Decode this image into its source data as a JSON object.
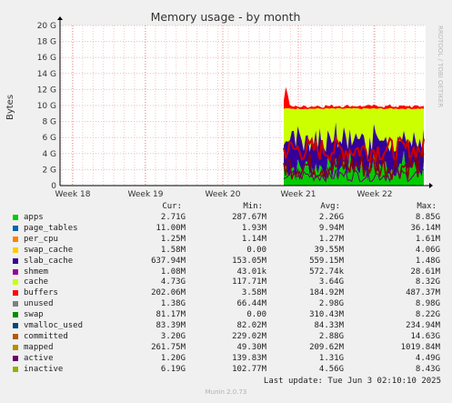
{
  "title": "Memory usage - by month",
  "watermark": "RRDTOOL / TOBI OETIKER",
  "ylabel": "Bytes",
  "footer": {
    "last_update": "Last update: Tue Jun  3 02:10:10 2025",
    "munin": "Munin 2.0.73"
  },
  "legend_headers": {
    "cur": "Cur:",
    "min": "Min:",
    "avg": "Avg:",
    "max": "Max:"
  },
  "chart_data": {
    "type": "area",
    "title": "Memory usage - by month",
    "ylabel": "Bytes",
    "y_ticks": [
      "0",
      "2 G",
      "4 G",
      "6 G",
      "8 G",
      "10 G",
      "12 G",
      "14 G",
      "16 G",
      "18 G",
      "20 G"
    ],
    "ylim_gb": [
      0,
      20
    ],
    "x_ticks": [
      "Week 18",
      "Week 19",
      "Week 20",
      "Week 21",
      "Week 22"
    ],
    "grid": true,
    "data_start_week": "Week 21",
    "approx_stack_gb": {
      "apps": 2.3,
      "cache": 3.6,
      "unused": 3.0,
      "total_ram_line": 9.6,
      "swap_spike_max": 12.3
    },
    "series": [
      {
        "name": "apps",
        "color": "#00cc00",
        "cur": "2.71G",
        "min": "287.67M",
        "avg": "2.26G",
        "max": "8.85G"
      },
      {
        "name": "page_tables",
        "color": "#0066b3",
        "cur": "11.00M",
        "min": "1.93M",
        "avg": "9.94M",
        "max": "36.14M"
      },
      {
        "name": "per_cpu",
        "color": "#ff8000",
        "cur": "1.25M",
        "min": "1.14M",
        "avg": "1.27M",
        "max": "1.61M"
      },
      {
        "name": "swap_cache",
        "color": "#ffcc00",
        "cur": "1.58M",
        "min": "0.00",
        "avg": "39.55M",
        "max": "4.06G"
      },
      {
        "name": "slab_cache",
        "color": "#330099",
        "cur": "637.94M",
        "min": "153.05M",
        "avg": "559.15M",
        "max": "1.48G"
      },
      {
        "name": "shmem",
        "color": "#990099",
        "cur": "1.08M",
        "min": "43.01k",
        "avg": "572.74k",
        "max": "28.61M"
      },
      {
        "name": "cache",
        "color": "#ccff00",
        "cur": "4.73G",
        "min": "117.71M",
        "avg": "3.64G",
        "max": "8.32G"
      },
      {
        "name": "buffers",
        "color": "#ff0000",
        "cur": "202.06M",
        "min": "3.58M",
        "avg": "184.92M",
        "max": "487.37M"
      },
      {
        "name": "unused",
        "color": "#808080",
        "cur": "1.38G",
        "min": "66.44M",
        "avg": "2.98G",
        "max": "8.98G"
      },
      {
        "name": "swap",
        "color": "#008f00",
        "cur": "81.17M",
        "min": "0.00",
        "avg": "310.43M",
        "max": "8.22G"
      },
      {
        "name": "vmalloc_used",
        "color": "#00487d",
        "cur": "83.39M",
        "min": "82.02M",
        "avg": "84.33M",
        "max": "234.94M"
      },
      {
        "name": "committed",
        "color": "#b35a00",
        "cur": "3.20G",
        "min": "229.02M",
        "avg": "2.88G",
        "max": "14.63G"
      },
      {
        "name": "mapped",
        "color": "#b38f00",
        "cur": "261.75M",
        "min": "49.30M",
        "avg": "209.62M",
        "max": "1019.84M"
      },
      {
        "name": "active",
        "color": "#6b006b",
        "cur": "1.20G",
        "min": "139.83M",
        "avg": "1.31G",
        "max": "4.49G"
      },
      {
        "name": "inactive",
        "color": "#8fb300",
        "cur": "6.19G",
        "min": "102.77M",
        "avg": "4.56G",
        "max": "8.43G"
      }
    ]
  }
}
